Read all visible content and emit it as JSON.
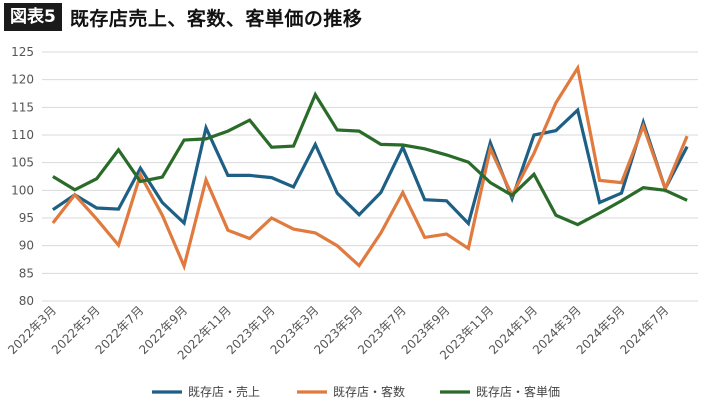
{
  "header": {
    "badge": "図表5",
    "title": "既存店売上、客数、客単価の推移"
  },
  "colors": {
    "sales": "#1e5f85",
    "customers": "#e07a3e",
    "unit_price": "#2a6b2a",
    "grid": "#d9d9d9"
  },
  "chart_data": {
    "type": "line",
    "ylim": [
      80,
      125
    ],
    "yticks": [
      80,
      85,
      90,
      95,
      100,
      105,
      110,
      115,
      120,
      125
    ],
    "x": [
      "2022年3月",
      "2022年4月",
      "2022年5月",
      "2022年6月",
      "2022年7月",
      "2022年8月",
      "2022年9月",
      "2022年10月",
      "2022年11月",
      "2022年12月",
      "2023年1月",
      "2023年2月",
      "2023年3月",
      "2023年4月",
      "2023年5月",
      "2023年6月",
      "2023年7月",
      "2023年8月",
      "2023年9月",
      "2023年10月",
      "2023年11月",
      "2023年12月",
      "2024年1月",
      "2024年2月",
      "2024年3月",
      "2024年4月",
      "2024年5月",
      "2024年6月",
      "2024年7月",
      "2024年8月"
    ],
    "xtick_labels": [
      "2022年3月",
      "2022年5月",
      "2022年7月",
      "2022年9月",
      "2022年11月",
      "2023年1月",
      "2023年3月",
      "2023年5月",
      "2023年7月",
      "2023年9月",
      "2023年11月",
      "2024年1月",
      "2024年3月",
      "2024年5月",
      "2024年7月"
    ],
    "legend_position": "bottom",
    "grid": true,
    "series": [
      {
        "name": "既存店・売上",
        "color_key": "sales",
        "values": [
          96.5,
          99.2,
          96.8,
          96.6,
          104.0,
          97.8,
          94.1,
          111.3,
          102.7,
          102.7,
          102.3,
          100.6,
          108.3,
          99.5,
          95.6,
          99.6,
          107.8,
          98.3,
          98.1,
          94.0,
          108.6,
          98.5,
          110.0,
          110.8,
          114.5,
          97.8,
          99.5,
          112.3,
          100.3,
          107.9
        ]
      },
      {
        "name": "既存店・客数",
        "color_key": "customers",
        "values": [
          94.1,
          99.2,
          94.8,
          90.1,
          102.8,
          95.5,
          86.3,
          101.9,
          92.8,
          91.3,
          95.0,
          93.0,
          92.3,
          90.0,
          86.4,
          92.3,
          99.6,
          91.5,
          92.1,
          89.5,
          107.5,
          99.1,
          106.7,
          115.8,
          122.1,
          101.8,
          101.4,
          111.6,
          100.3,
          109.8
        ]
      },
      {
        "name": "既存店・客単価",
        "color_key": "unit_price",
        "values": [
          102.5,
          100.1,
          102.1,
          107.3,
          101.6,
          102.4,
          109.1,
          109.3,
          110.7,
          112.7,
          107.8,
          108.0,
          117.3,
          110.9,
          110.7,
          108.3,
          108.2,
          107.5,
          106.4,
          105.1,
          101.4,
          99.1,
          102.9,
          95.5,
          93.8,
          95.9,
          98.1,
          100.5,
          100.0,
          98.2
        ]
      }
    ]
  }
}
